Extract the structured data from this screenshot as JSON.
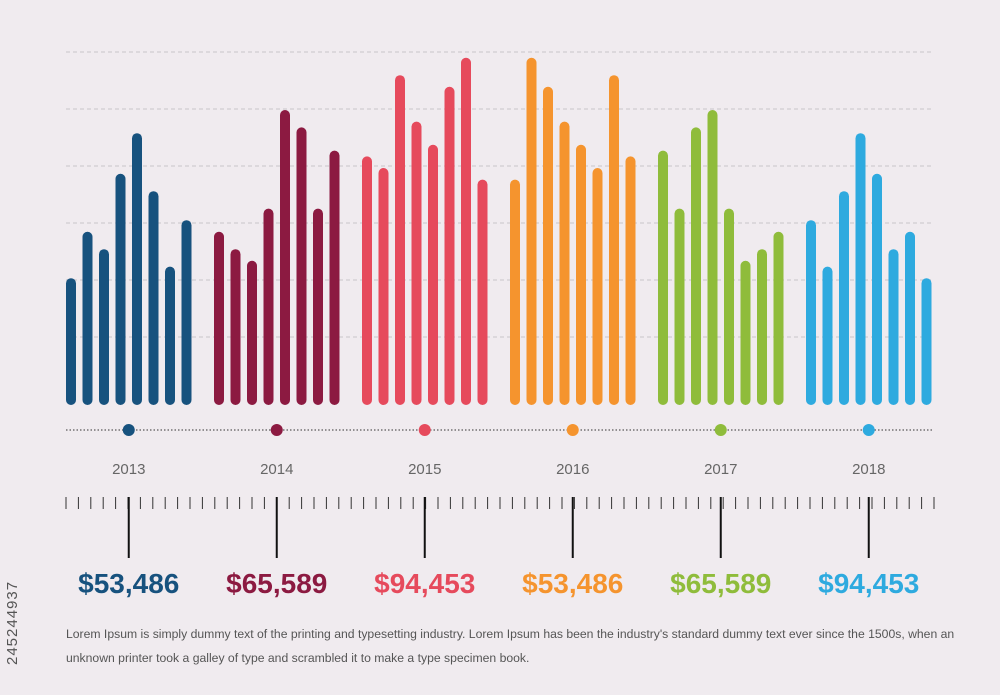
{
  "chart_data": {
    "type": "bar",
    "ylim": [
      0,
      12
    ],
    "grid": true,
    "groups": [
      {
        "label": "2013",
        "value_label": "$53,486",
        "color": "#17527e",
        "values": [
          4.2,
          5.8,
          5.2,
          7.8,
          9.2,
          7.2,
          4.6,
          6.2
        ]
      },
      {
        "label": "2014",
        "value_label": "$65,589",
        "color": "#8c1a41",
        "values": [
          5.8,
          5.2,
          4.8,
          6.6,
          10.0,
          9.4,
          6.6,
          8.6
        ]
      },
      {
        "label": "2015",
        "value_label": "$94,453",
        "color": "#e64a5c",
        "values": [
          8.4,
          8.0,
          11.2,
          9.6,
          8.8,
          10.8,
          11.8,
          7.6
        ]
      },
      {
        "label": "2016",
        "value_label": "$53,486",
        "color": "#f5942e",
        "values": [
          7.6,
          11.8,
          10.8,
          9.6,
          8.8,
          8.0,
          11.2,
          8.4
        ]
      },
      {
        "label": "2017",
        "value_label": "$65,589",
        "color": "#8fbc3b",
        "values": [
          8.6,
          6.6,
          9.4,
          10.0,
          6.6,
          4.8,
          5.2,
          5.8
        ]
      },
      {
        "label": "2018",
        "value_label": "$94,453",
        "color": "#2eaadf",
        "values": [
          6.2,
          4.6,
          7.2,
          9.2,
          7.8,
          5.2,
          5.8,
          4.2
        ]
      }
    ]
  },
  "description": "Lorem Ipsum is simply dummy text of the printing and typesetting industry. Lorem Ipsum has been the industry's standard dummy text ever since the 1500s, when an unknown printer took a galley of type and scrambled it to make a type specimen book.",
  "watermark": "245244937",
  "colors": {
    "background": "#f0ebef",
    "grid": "#c9c4c8",
    "axis": "#333333",
    "label": "#666666"
  }
}
